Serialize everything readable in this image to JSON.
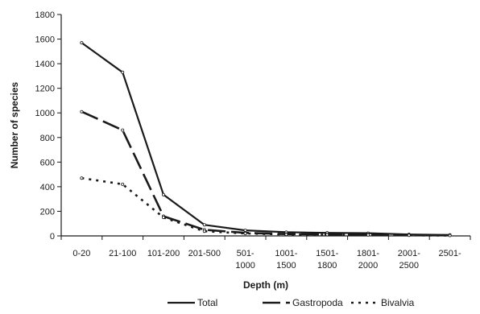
{
  "chart_data": {
    "type": "line",
    "xlabel": "Depth (m)",
    "ylabel": "Number of species",
    "ylim": [
      0,
      1800
    ],
    "yticks": [
      0,
      200,
      400,
      600,
      800,
      1000,
      1200,
      1400,
      1600,
      1800
    ],
    "categories": [
      [
        "0-20"
      ],
      [
        "21-100"
      ],
      [
        "101-200"
      ],
      [
        "201-500"
      ],
      [
        "501-",
        "1000"
      ],
      [
        "1001-",
        "1500"
      ],
      [
        "1501-",
        "1800"
      ],
      [
        "1801-",
        "2000"
      ],
      [
        "2001-",
        "2500"
      ],
      [
        "2501-"
      ]
    ],
    "series": [
      {
        "name": "Total",
        "values": [
          1570,
          1330,
          335,
          90,
          45,
          30,
          25,
          22,
          12,
          8
        ],
        "color": "#1a1a1a",
        "dash": "solid"
      },
      {
        "name": "Gastropoda",
        "values": [
          1010,
          860,
          160,
          50,
          25,
          15,
          12,
          12,
          8,
          5
        ],
        "color": "#1a1a1a",
        "dash": "longdash"
      },
      {
        "name": "Bivalvia",
        "values": [
          470,
          420,
          150,
          38,
          20,
          12,
          10,
          8,
          5,
          3
        ],
        "color": "#1a1a1a",
        "dash": "dot"
      }
    ],
    "grid": false,
    "legend": "bottom"
  }
}
